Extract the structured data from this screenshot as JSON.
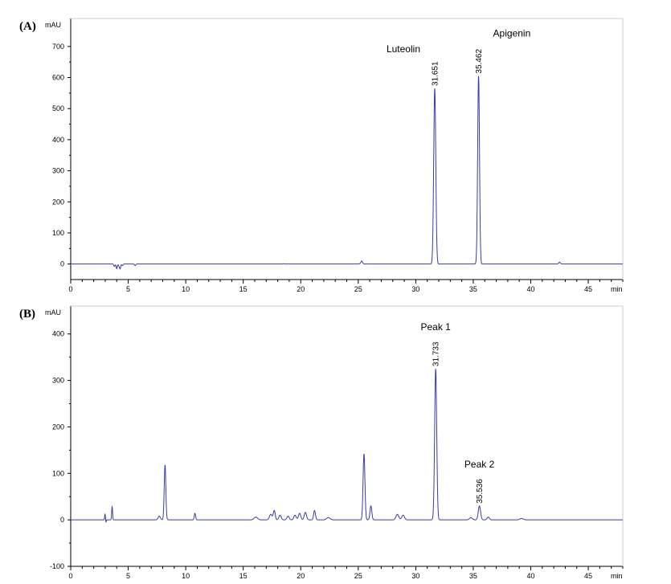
{
  "chart_data": [
    {
      "type": "line",
      "panel_label": "(A)",
      "ylabel": "mAU",
      "xlabel": "min",
      "xlim": [
        0,
        48
      ],
      "ylim": [
        -50,
        790
      ],
      "x_ticks": [
        0,
        5,
        10,
        15,
        20,
        25,
        30,
        35,
        40,
        45
      ],
      "y_ticks": [
        0,
        100,
        200,
        300,
        400,
        500,
        600,
        700
      ],
      "line_color": "#3a3aa8",
      "baseline_points": [
        [
          3.8,
          -8
        ],
        [
          4.0,
          -15
        ],
        [
          4.2,
          -6
        ],
        [
          4.3,
          -15
        ],
        [
          4.5,
          -5
        ],
        [
          5.6,
          -5
        ],
        [
          18.5,
          1
        ],
        [
          25.3,
          5
        ],
        [
          25.6,
          0
        ],
        [
          42.5,
          3
        ]
      ],
      "peaks": [
        {
          "name": "Luteolin",
          "rt": "31.651",
          "x": 31.651,
          "y": 565,
          "width": 0.09
        },
        {
          "name": "Apigenin",
          "rt": "35.462",
          "x": 35.462,
          "y": 605,
          "width": 0.08
        }
      ],
      "small_peaks": [
        {
          "x": 25.3,
          "y": 5,
          "width": 0.1
        },
        {
          "x": 42.5,
          "y": 3,
          "width": 0.1
        }
      ]
    },
    {
      "type": "line",
      "panel_label": "(B)",
      "ylabel": "mAU",
      "xlabel": "min",
      "xlim": [
        0,
        48
      ],
      "ylim": [
        -100,
        460
      ],
      "x_ticks": [
        0,
        5,
        10,
        15,
        20,
        25,
        30,
        35,
        40,
        45
      ],
      "y_ticks": [
        -100,
        0,
        100,
        200,
        300,
        400
      ],
      "line_color": "#3a3aa8",
      "peaks": [
        {
          "name": "Peak 1",
          "rt": "31.733",
          "x": 31.733,
          "y": 325,
          "width": 0.09
        },
        {
          "name": "Peak 2",
          "rt": "35.536",
          "x": 35.536,
          "y": 30,
          "width": 0.1
        }
      ],
      "small_peaks": [
        {
          "x": 3.0,
          "y": 14,
          "width": 0.04
        },
        {
          "x": 3.6,
          "y": 28,
          "width": 0.04
        },
        {
          "x": 7.7,
          "y": 8,
          "width": 0.1
        },
        {
          "x": 8.2,
          "y": 118,
          "width": 0.07
        },
        {
          "x": 10.8,
          "y": 14,
          "width": 0.06
        },
        {
          "x": 16.1,
          "y": 6,
          "width": 0.15
        },
        {
          "x": 17.4,
          "y": 12,
          "width": 0.12
        },
        {
          "x": 17.7,
          "y": 20,
          "width": 0.08
        },
        {
          "x": 18.2,
          "y": 10,
          "width": 0.1
        },
        {
          "x": 18.9,
          "y": 8,
          "width": 0.1
        },
        {
          "x": 19.5,
          "y": 10,
          "width": 0.1
        },
        {
          "x": 19.9,
          "y": 14,
          "width": 0.1
        },
        {
          "x": 20.4,
          "y": 16,
          "width": 0.1
        },
        {
          "x": 21.2,
          "y": 20,
          "width": 0.08
        },
        {
          "x": 22.4,
          "y": 5,
          "width": 0.15
        },
        {
          "x": 25.5,
          "y": 142,
          "width": 0.08
        },
        {
          "x": 26.1,
          "y": 30,
          "width": 0.08
        },
        {
          "x": 28.4,
          "y": 12,
          "width": 0.12
        },
        {
          "x": 28.9,
          "y": 10,
          "width": 0.12
        },
        {
          "x": 34.8,
          "y": 5,
          "width": 0.12
        },
        {
          "x": 36.3,
          "y": 6,
          "width": 0.1
        },
        {
          "x": 39.2,
          "y": 3,
          "width": 0.15
        }
      ],
      "dips": [
        {
          "x": 3.05,
          "y": -10,
          "width": 0.03
        }
      ]
    }
  ]
}
